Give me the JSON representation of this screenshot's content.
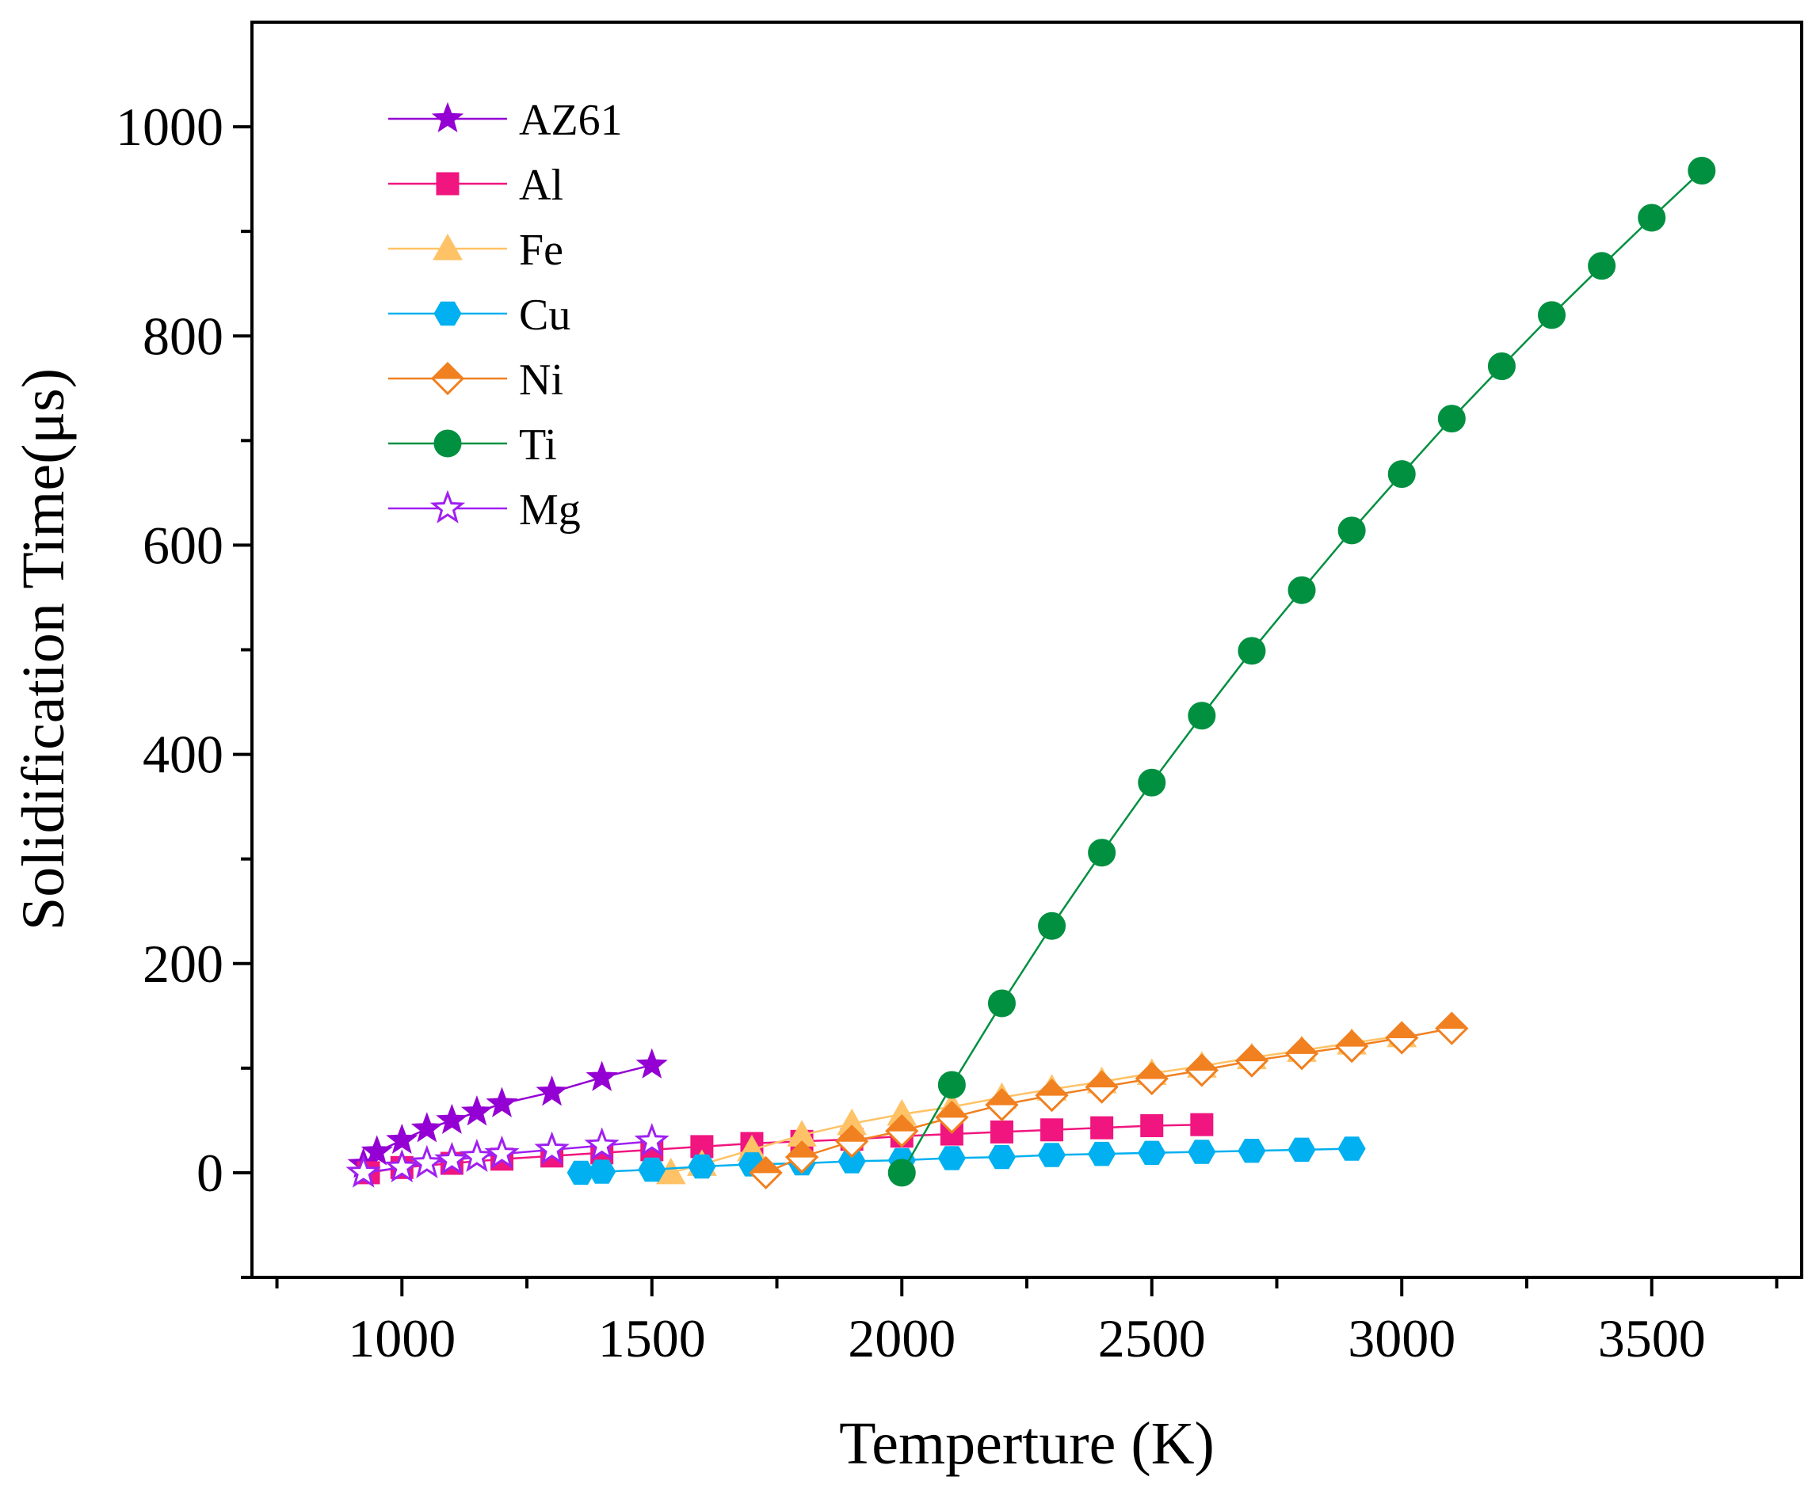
{
  "chart_data": {
    "type": "line",
    "title": "",
    "xlabel": "Temperture (K)",
    "ylabel": "Solidification Time(μs)",
    "xlim": [
      700,
      3800
    ],
    "ylim": [
      -100,
      1100
    ],
    "x_major_ticks": [
      1000,
      1500,
      2000,
      2500,
      3000,
      3500
    ],
    "x_minor_ticks": [
      750,
      1250,
      1750,
      2250,
      2750,
      3250,
      3750
    ],
    "y_major_ticks": [
      0,
      200,
      400,
      600,
      800,
      1000
    ],
    "y_minor_ticks": [
      -100,
      100,
      300,
      500,
      700,
      900
    ],
    "x_tick_labels": [
      "1000",
      "1500",
      "2000",
      "2500",
      "3000",
      "3500"
    ],
    "y_tick_labels": [
      "0",
      "200",
      "400",
      "600",
      "800",
      "1000"
    ],
    "legend_position": "top-left",
    "series": [
      {
        "name": "AZ61",
        "color": "#9400D3",
        "marker": "star",
        "filled": true,
        "x": [
          923,
          950,
          1000,
          1050,
          1100,
          1150,
          1200,
          1300,
          1400,
          1500
        ],
        "y": [
          8,
          20,
          31,
          42,
          50,
          58,
          66,
          77,
          91,
          103
        ]
      },
      {
        "name": "Al",
        "color": "#F0157F",
        "marker": "square",
        "filled": true,
        "x": [
          933,
          1000,
          1100,
          1200,
          1300,
          1400,
          1500,
          1600,
          1700,
          1800,
          1900,
          2000,
          2100,
          2200,
          2300,
          2400,
          2500,
          2600
        ],
        "y": [
          0,
          5,
          9,
          13,
          16,
          19,
          22,
          25,
          28,
          30,
          32,
          35,
          37,
          39,
          41,
          43,
          45,
          46
        ]
      },
      {
        "name": "Fe",
        "color": "#FFC266",
        "marker": "triangle",
        "filled": true,
        "x": [
          1538,
          1600,
          1700,
          1800,
          1900,
          2000,
          2100,
          2200,
          2300,
          2400,
          2500,
          2600,
          2700,
          2800,
          2900,
          3000
        ],
        "y": [
          0,
          8,
          22,
          36,
          47,
          56,
          63,
          72,
          80,
          87,
          95,
          102,
          110,
          117,
          124,
          131
        ]
      },
      {
        "name": "Cu",
        "color": "#00B0F0",
        "marker": "hexagon",
        "filled": true,
        "x": [
          1358,
          1400,
          1500,
          1600,
          1700,
          1800,
          1900,
          2000,
          2100,
          2200,
          2300,
          2400,
          2500,
          2600,
          2700,
          2800,
          2900
        ],
        "y": [
          0,
          1,
          3,
          6,
          8,
          9,
          11,
          12,
          14,
          15,
          17,
          18,
          19,
          20,
          21,
          22,
          23
        ]
      },
      {
        "name": "Ni",
        "color": "#F08020",
        "marker": "diamond",
        "filled": "half",
        "x": [
          1728,
          1800,
          1900,
          2000,
          2100,
          2200,
          2300,
          2400,
          2500,
          2600,
          2700,
          2800,
          2900,
          3000,
          3100
        ],
        "y": [
          0,
          15,
          30,
          40,
          53,
          65,
          74,
          82,
          90,
          98,
          107,
          114,
          121,
          129,
          138
        ]
      },
      {
        "name": "Ti",
        "color": "#009040",
        "marker": "circle",
        "filled": true,
        "x": [
          2000,
          2100,
          2200,
          2300,
          2400,
          2500,
          2600,
          2700,
          2800,
          2900,
          3000,
          3100,
          3200,
          3300,
          3400,
          3500,
          3600
        ],
        "y": [
          0,
          84,
          162,
          236,
          306,
          373,
          437,
          499,
          557,
          614,
          668,
          721,
          771,
          820,
          867,
          913,
          958
        ]
      },
      {
        "name": "Mg",
        "color": "#A020F0",
        "marker": "star",
        "filled": false,
        "x": [
          923,
          1000,
          1050,
          1100,
          1150,
          1200,
          1300,
          1400,
          1500
        ],
        "y": [
          0,
          5,
          9,
          12,
          15,
          18,
          22,
          26,
          30
        ]
      }
    ]
  }
}
